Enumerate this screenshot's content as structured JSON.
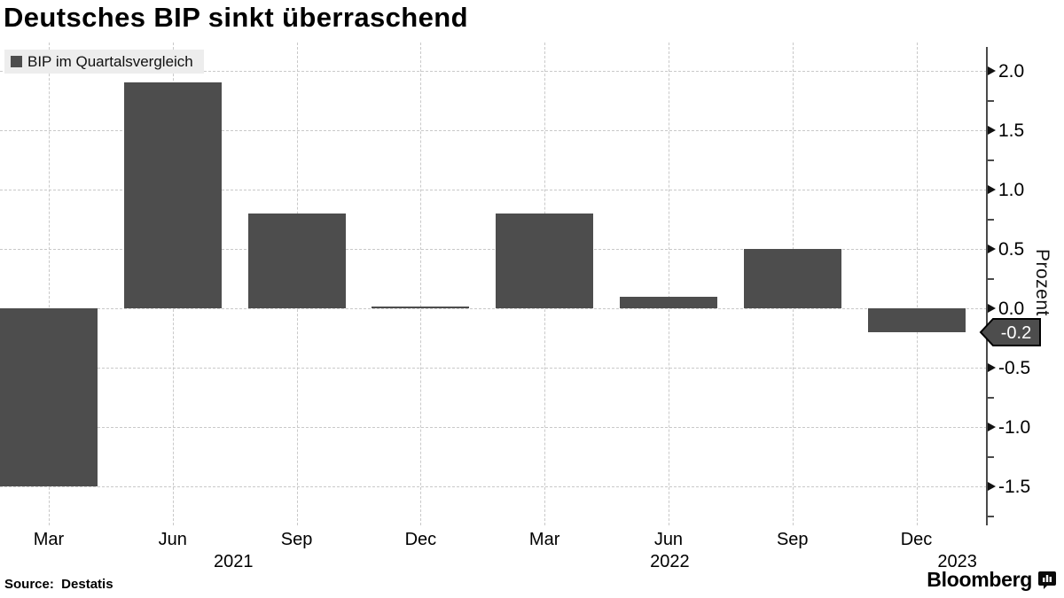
{
  "title": "Deutsches BIP sinkt überraschend",
  "legend": {
    "label": "BIP im Quartalsvergleich"
  },
  "y_axis": {
    "title": "Prozent",
    "tick_labels": [
      "2.0",
      "1.5",
      "1.0",
      "0.5",
      "0.0",
      "-0.5",
      "-1.0",
      "-1.5"
    ]
  },
  "x_axis": {
    "tick_labels": [
      "Mar",
      "Jun",
      "Sep",
      "Dec",
      "Mar",
      "Jun",
      "Sep",
      "Dec"
    ],
    "year_labels": [
      "2021",
      "2022",
      "2023"
    ]
  },
  "annotation": {
    "last_value": "-0.2"
  },
  "footer": {
    "source": "Source:  Destatis",
    "brand": "Bloomberg"
  },
  "colors": {
    "bar": "#4d4d4d",
    "grid": "#c9c9c9",
    "axis": "#4a4a4a",
    "legend_bg": "#ededed",
    "badge_bg": "#4d4d4d",
    "badge_border": "#000000",
    "badge_text": "#ffffff"
  },
  "chart_data": {
    "type": "bar",
    "title": "Deutsches BIP sinkt überraschend",
    "categories": [
      "Mar 2021",
      "Jun 2021",
      "Sep 2021",
      "Dec 2021",
      "Mar 2022",
      "Jun 2022",
      "Sep 2022",
      "Dec 2022"
    ],
    "series": [
      {
        "name": "BIP im Quartalsvergleich",
        "values": [
          -1.5,
          1.9,
          0.8,
          0.0,
          0.8,
          0.1,
          0.5,
          -0.2
        ]
      }
    ],
    "xlabel": "",
    "ylabel": "Prozent",
    "ylim": [
      -1.8,
      2.2
    ],
    "yticks": [
      2.0,
      1.5,
      1.0,
      0.5,
      0.0,
      -0.5,
      -1.0,
      -1.5
    ],
    "yticks_minor": [
      1.75,
      1.25,
      0.75,
      0.25,
      -0.25,
      -0.75,
      -1.25,
      -1.75
    ],
    "grid": "dashed horizontal and vertical",
    "legend_position": "top-left",
    "last_value_label": "-0.2",
    "source": "Destatis",
    "brand": "Bloomberg"
  }
}
